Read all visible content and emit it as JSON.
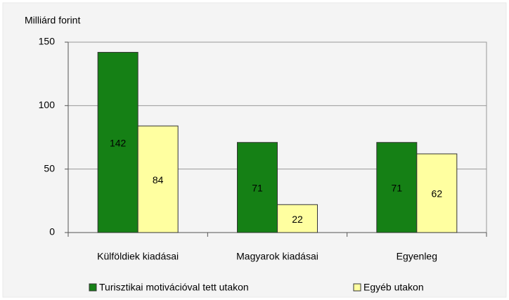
{
  "chart_data": {
    "type": "bar",
    "y_label": "Milliárd forint",
    "categories": [
      "Külföldiek kiadásai",
      "Magyarok kiadásai",
      "Egyenleg"
    ],
    "series": [
      {
        "name": "Turisztikai motivációval tett utakon",
        "color": "#158015",
        "values": [
          142,
          71,
          71
        ]
      },
      {
        "name": "Egyéb utakon",
        "color": "#ffffa0",
        "values": [
          84,
          22,
          62
        ]
      }
    ],
    "ylim": [
      0,
      150
    ],
    "yticks": [
      0,
      50,
      100,
      150
    ],
    "grid": true
  }
}
